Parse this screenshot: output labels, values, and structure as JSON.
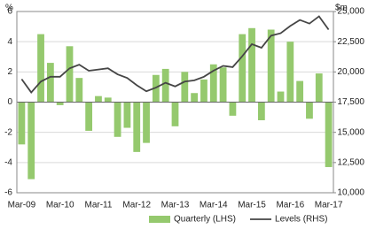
{
  "chart_data": {
    "type": "bar",
    "y_label": "%",
    "y2_label": "$m",
    "categories": [
      "Mar-09",
      null,
      null,
      null,
      "Mar-10",
      null,
      null,
      null,
      "Mar-11",
      null,
      null,
      null,
      "Mar-12",
      null,
      null,
      null,
      "Mar-13",
      null,
      null,
      null,
      "Mar-14",
      null,
      null,
      null,
      "Mar-15",
      null,
      null,
      null,
      "Mar-16",
      null,
      null,
      null,
      "Mar-17"
    ],
    "series": [
      {
        "name": "Quarterly (LHS)",
        "type": "bar",
        "color": "#95c96e",
        "values": [
          -2.8,
          -5.1,
          4.5,
          2.6,
          -0.2,
          3.7,
          1.6,
          -1.9,
          0.4,
          0.3,
          -2.3,
          -1.7,
          -3.3,
          -2.7,
          1.8,
          2.2,
          -1.6,
          2.0,
          0.6,
          1.5,
          2.5,
          2.3,
          -0.9,
          4.5,
          4.9,
          -1.2,
          4.8,
          0.7,
          4.0,
          1.4,
          -1.1,
          1.9,
          -4.3
        ]
      },
      {
        "name": "Levels (RHS)",
        "type": "line",
        "axis": "y2",
        "color": "#454545",
        "values": [
          19400,
          18300,
          19200,
          19600,
          19600,
          20300,
          20600,
          20100,
          20200,
          20300,
          19800,
          19500,
          18900,
          18400,
          18700,
          19100,
          18800,
          19200,
          19300,
          19600,
          20100,
          20500,
          20400,
          21300,
          22300,
          22000,
          23000,
          23200,
          23800,
          24300,
          24000,
          24600,
          23500
        ]
      }
    ],
    "ylim": [
      -6,
      6
    ],
    "yticks": [
      -6,
      -4,
      -2,
      0,
      2,
      4,
      6
    ],
    "y2lim": [
      10000,
      25000
    ],
    "y2ticks": [
      {
        "value": 10000,
        "label": "10,000"
      },
      {
        "value": 12500,
        "label": "12,500"
      },
      {
        "value": 15000,
        "label": "15,000"
      },
      {
        "value": 17500,
        "label": "17,500"
      },
      {
        "value": 20000,
        "label": "20,000"
      },
      {
        "value": 22500,
        "label": "22,500"
      },
      {
        "value": 25000,
        "label": "25,000"
      }
    ],
    "grid": true,
    "legend": "bottom"
  }
}
